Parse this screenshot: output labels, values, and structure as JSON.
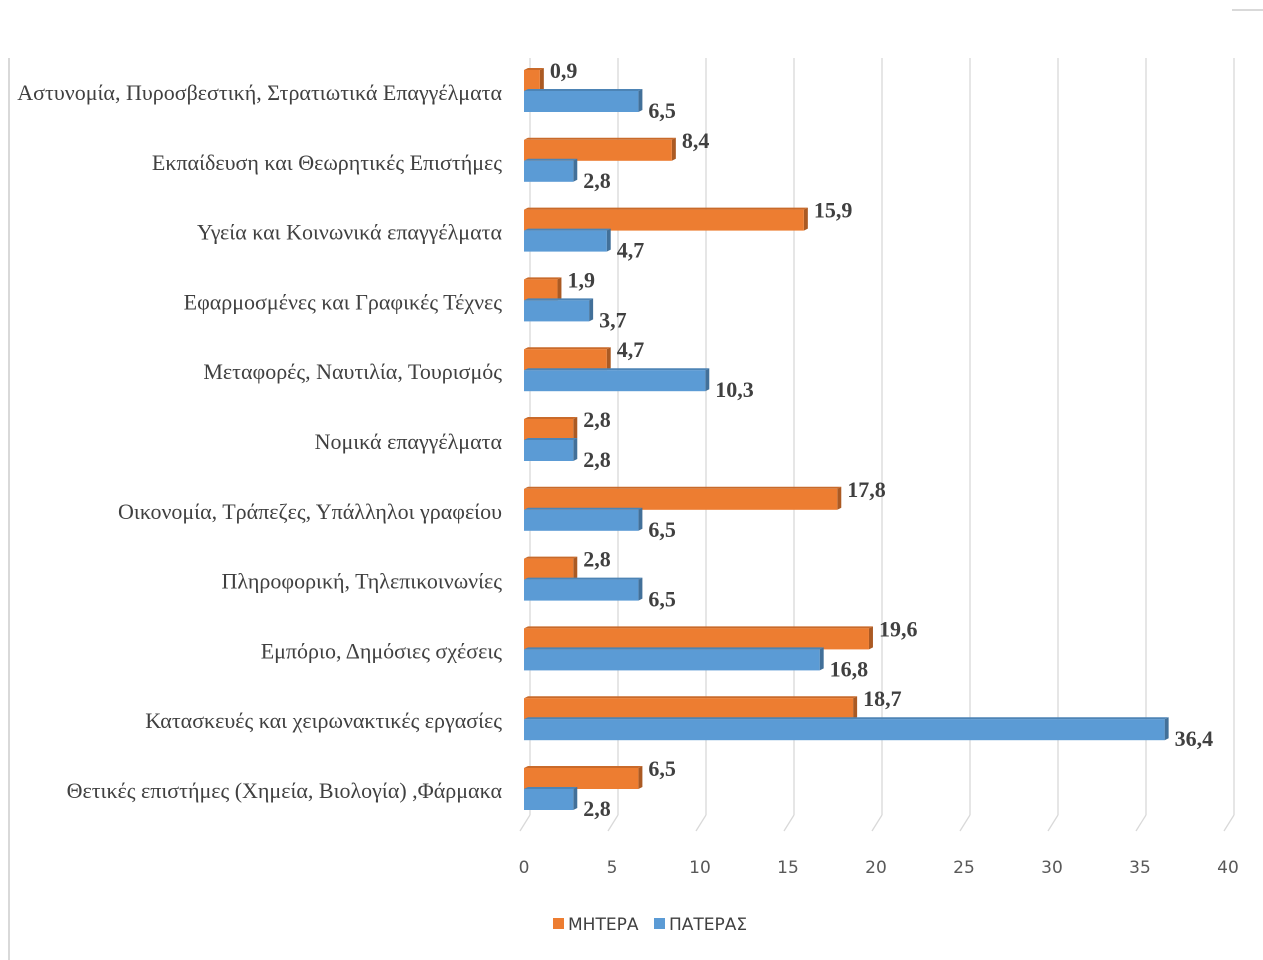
{
  "chart_data": {
    "type": "bar",
    "orientation": "horizontal",
    "categories": [
      "Αστυνομία, Πυροσβεστική, Στρατιωτικά Επαγγέλματα",
      "Εκπαίδευση και Θεωρητικές Επιστήμες",
      "Υγεία και Κοινωνικά επαγγέλματα",
      "Εφαρμοσμένες και Γραφικές Τέχνες",
      "Μεταφορές, Ναυτιλία, Τουρισμός",
      "Νομικά επαγγέλματα",
      "Οικονομία, Τράπεζες, Υπάλληλοι γραφείου",
      "Πληροφορική, Τηλεπικοινωνίες",
      "Εμπόριο, Δημόσιες σχέσεις",
      "Κατασκευές και χειρωνακτικές εργασίες",
      "Θετικές επιστήμες (Χημεία, Βιολογία) ,Φάρμακα"
    ],
    "series": [
      {
        "name": "ΜΗΤΕΡΑ",
        "color": "#ED7D31",
        "values": [
          0.9,
          8.4,
          15.9,
          1.9,
          4.7,
          2.8,
          17.8,
          2.8,
          19.6,
          18.7,
          6.5
        ],
        "labels": [
          "0,9",
          "8,4",
          "15,9",
          "1,9",
          "4,7",
          "2,8",
          "17,8",
          "2,8",
          "19,6",
          "18,7",
          "6,5"
        ]
      },
      {
        "name": "ΠΑΤΕΡΑΣ",
        "color": "#5B9BD5",
        "values": [
          6.5,
          2.8,
          4.7,
          3.7,
          10.3,
          2.8,
          6.5,
          6.5,
          16.8,
          36.4,
          2.8
        ],
        "labels": [
          "6,5",
          "2,8",
          "4,7",
          "3,7",
          "10,3",
          "2,8",
          "6,5",
          "6,5",
          "16,8",
          "36,4",
          "2,8"
        ]
      }
    ],
    "xlim": [
      0,
      40
    ],
    "xticks": [
      "0",
      "5",
      "10",
      "15",
      "20",
      "25",
      "30",
      "35",
      "40"
    ],
    "grid": true,
    "legend_position": "bottom",
    "title": "",
    "xlabel": "",
    "ylabel": ""
  }
}
